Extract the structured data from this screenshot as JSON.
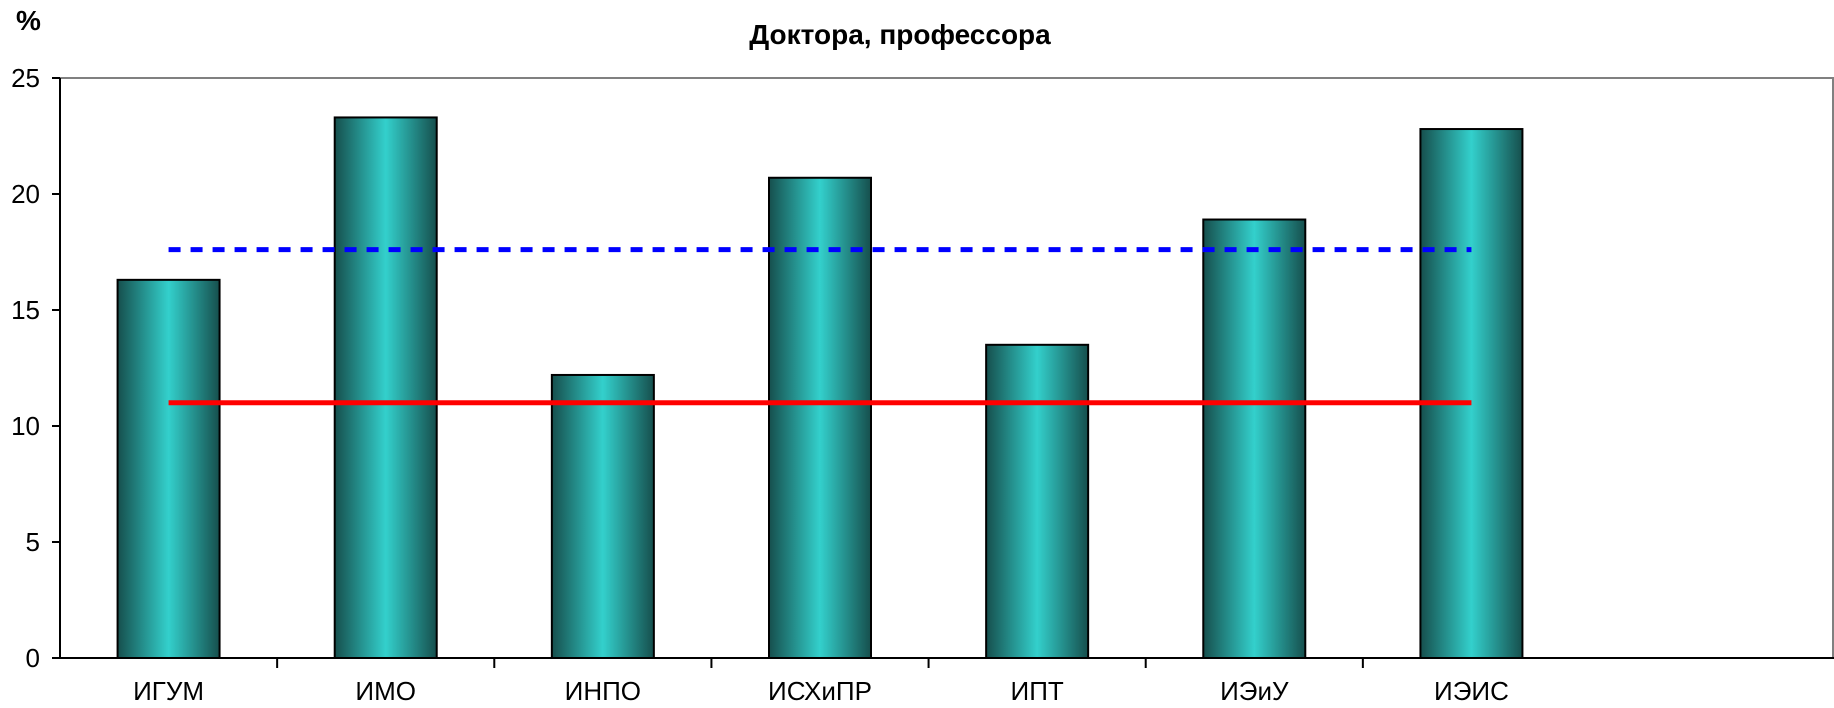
{
  "chart_data": {
    "type": "bar",
    "title": "Доктора, профессора",
    "ylabel": "%",
    "xlabel": "",
    "categories": [
      "ИГУМ",
      "ИМО",
      "ИНПО",
      "ИСХиПР",
      "ИПТ",
      "ИЭиУ",
      "ИЭИС"
    ],
    "values": [
      16.3,
      23.3,
      12.2,
      20.7,
      13.5,
      18.9,
      22.8
    ],
    "ylim": [
      0,
      25
    ],
    "yticks": [
      "0",
      "5",
      "10",
      "15",
      "20",
      "25"
    ],
    "reference_lines": [
      {
        "value": 17.6,
        "style": "dotted",
        "color": "#0000ff"
      },
      {
        "value": 11.0,
        "style": "solid",
        "color": "#ff0000"
      }
    ],
    "bar_color": "#2ec8c4",
    "bar_color_dark": "#1a6f6c",
    "grid": false,
    "legend": "none"
  }
}
